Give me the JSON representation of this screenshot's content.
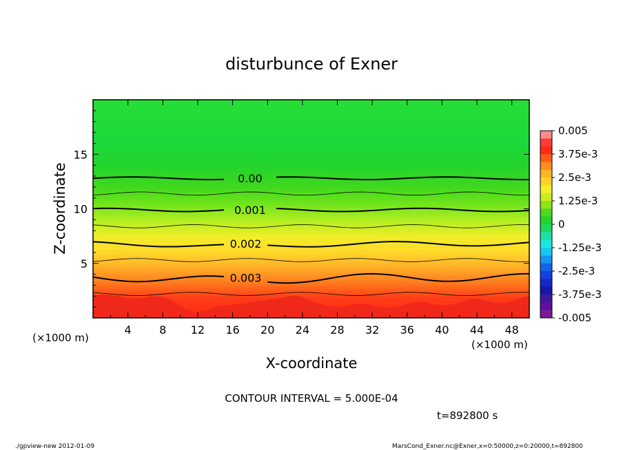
{
  "chart_data": {
    "type": "heatmap",
    "title": "disturbunce of Exner",
    "xlabel": "X-coordinate",
    "ylabel": "Z-coordinate",
    "x_unit_left": "(×1000 m)",
    "x_unit_right": "(×1000 m)",
    "xlim": [
      0,
      50
    ],
    "ylim": [
      0,
      20
    ],
    "x_ticks": [
      4,
      8,
      12,
      16,
      20,
      24,
      28,
      32,
      36,
      40,
      44,
      48
    ],
    "y_ticks": [
      5,
      10,
      15
    ],
    "contours": [
      {
        "label": "0.00",
        "z": 12.8
      },
      {
        "label": "0.001",
        "z": 9.9
      },
      {
        "label": "0.002",
        "z": 6.8
      },
      {
        "label": "0.003",
        "z": 3.7
      }
    ],
    "colorbar": {
      "min": -0.005,
      "max": 0.005,
      "labels": [
        "0.005",
        "3.75e-3",
        "2.5e-3",
        "1.25e-3",
        "0",
        "-1.25e-3",
        "-2.5e-3",
        "-3.75e-3",
        "-0.005"
      ]
    },
    "annotations": {
      "contour_interval": "CONTOUR INTERVAL = 5.000E-04",
      "time": "t=892800 s",
      "footer_left": "./gpview-new   2012-01-09",
      "footer_right": "MarsCond_Exner.nc@Exner,x=0:50000,z=0:20000,t=892800"
    }
  }
}
